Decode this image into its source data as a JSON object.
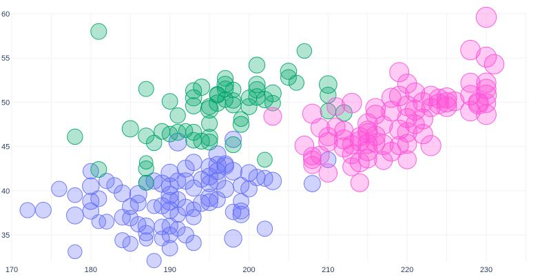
{
  "chart_data": {
    "type": "scatter",
    "variant": "bubble",
    "title": "",
    "xlabel": "",
    "ylabel": "",
    "xlim": [
      170,
      235
    ],
    "ylim": [
      32,
      60
    ],
    "xticks": [
      "170",
      "180",
      "190",
      "200",
      "210",
      "220",
      "230"
    ],
    "yticks": [
      "35",
      "40",
      "45",
      "50",
      "55",
      "60"
    ],
    "grid": true,
    "legend": "none",
    "size_range": [
      2700,
      6300
    ],
    "series": [
      {
        "color": "#636efa",
        "points": [
          [
            172,
            37.8,
            3400
          ],
          [
            174,
            37.8,
            3700
          ],
          [
            176,
            40.2,
            3500
          ],
          [
            178,
            39.5,
            3300
          ],
          [
            178,
            37.2,
            4300
          ],
          [
            178,
            33.1,
            2900
          ],
          [
            180,
            42.2,
            3600
          ],
          [
            180,
            40.5,
            4200
          ],
          [
            180,
            38.8,
            4000
          ],
          [
            180,
            37.7,
            3900
          ],
          [
            181,
            39.1,
            3700
          ],
          [
            181,
            36.5,
            2900
          ],
          [
            182,
            41.1,
            3500
          ],
          [
            182,
            36.5,
            3300
          ],
          [
            183,
            40.6,
            3600
          ],
          [
            184,
            39.7,
            4100
          ],
          [
            184,
            37.0,
            3700
          ],
          [
            184,
            34.4,
            3400
          ],
          [
            185,
            38.2,
            3800
          ],
          [
            185,
            36.9,
            3600
          ],
          [
            185,
            34.0,
            3400
          ],
          [
            186,
            39.6,
            4400
          ],
          [
            186,
            38.6,
            3700
          ],
          [
            186,
            36.2,
            3500
          ],
          [
            187,
            40.9,
            3400
          ],
          [
            187,
            36.0,
            4000
          ],
          [
            187,
            35.2,
            3600
          ],
          [
            187,
            34.5,
            2700
          ],
          [
            188,
            41.1,
            3900
          ],
          [
            188,
            38.2,
            2900
          ],
          [
            188,
            32.1,
            3100
          ],
          [
            189,
            40.8,
            4400
          ],
          [
            189,
            38.3,
            3900
          ],
          [
            189,
            35.9,
            3700
          ],
          [
            189,
            34.6,
            3300
          ],
          [
            190,
            42.0,
            4600
          ],
          [
            190,
            40.5,
            4200
          ],
          [
            190,
            39.5,
            4500
          ],
          [
            190,
            38.8,
            4700
          ],
          [
            190,
            37.8,
            4300
          ],
          [
            190,
            36.0,
            3800
          ],
          [
            190,
            35.0,
            3600
          ],
          [
            190,
            33.5,
            3600
          ],
          [
            191,
            41.1,
            3800
          ],
          [
            191,
            39.0,
            3700
          ],
          [
            191,
            37.3,
            3600
          ],
          [
            191,
            35.7,
            3200
          ],
          [
            192,
            42.5,
            4300
          ],
          [
            192,
            41.1,
            4000
          ],
          [
            192,
            38.1,
            4100
          ],
          [
            192,
            35.0,
            3900
          ],
          [
            193,
            43.2,
            4000
          ],
          [
            193,
            40.3,
            3900
          ],
          [
            193,
            37.9,
            3200
          ],
          [
            193,
            37.0,
            3400
          ],
          [
            193,
            34.1,
            3500
          ],
          [
            194,
            41.3,
            3800
          ],
          [
            194,
            38.6,
            4000
          ],
          [
            195,
            42.7,
            4200
          ],
          [
            195,
            41.6,
            4300
          ],
          [
            195,
            40.8,
            4000
          ],
          [
            195,
            39.2,
            4500
          ],
          [
            195,
            38.7,
            4200
          ],
          [
            196,
            44.1,
            4400
          ],
          [
            196,
            42.9,
            4400
          ],
          [
            196,
            42.2,
            4200
          ],
          [
            196,
            41.1,
            4300
          ],
          [
            196,
            39.0,
            3800
          ],
          [
            197,
            42.8,
            4200
          ],
          [
            197,
            40.2,
            4400
          ],
          [
            197,
            43.0,
            4100
          ],
          [
            198,
            42.2,
            4600
          ],
          [
            198,
            37.6,
            3600
          ],
          [
            198,
            34.6,
            4500
          ],
          [
            199,
            40.6,
            3800
          ],
          [
            199,
            38.8,
            3600
          ],
          [
            199,
            37.3,
            4000
          ],
          [
            199,
            37.7,
            3800
          ],
          [
            200,
            42.0,
            4200
          ],
          [
            200,
            40.2,
            3900
          ],
          [
            201,
            41.5,
            4000
          ],
          [
            202,
            41.4,
            3800
          ],
          [
            202,
            35.7,
            3500
          ],
          [
            203,
            41.1,
            4500
          ],
          [
            208,
            40.8,
            4000
          ],
          [
            210,
            43.5,
            3700
          ],
          [
            191,
            45.5,
            4700
          ],
          [
            198,
            45.8,
            4000
          ]
        ]
      },
      {
        "color": "#00a46b",
        "points": [
          [
            181,
            58.0,
            3700
          ],
          [
            178,
            46.1,
            3500
          ],
          [
            181,
            42.4,
            3700
          ],
          [
            185,
            47.0,
            4000
          ],
          [
            187,
            51.5,
            3400
          ],
          [
            187,
            46.2,
            3700
          ],
          [
            187,
            42.5,
            3500
          ],
          [
            187,
            43.2,
            2700
          ],
          [
            187,
            40.9,
            3300
          ],
          [
            188,
            45.4,
            3500
          ],
          [
            189,
            46.7,
            3700
          ],
          [
            190,
            50.1,
            3600
          ],
          [
            190,
            46.4,
            3600
          ],
          [
            191,
            48.5,
            3500
          ],
          [
            191,
            46.6,
            3800
          ],
          [
            192,
            46.8,
            2900
          ],
          [
            193,
            50.5,
            3900
          ],
          [
            193,
            51.3,
            3800
          ],
          [
            193,
            49.6,
            3900
          ],
          [
            193,
            46.6,
            3800
          ],
          [
            193,
            45.7,
            3600
          ],
          [
            194,
            51.7,
            4000
          ],
          [
            194,
            45.6,
            3800
          ],
          [
            195,
            49.2,
            4600
          ],
          [
            195,
            49.5,
            3800
          ],
          [
            195,
            47.6,
            3700
          ],
          [
            195,
            46.0,
            4100
          ],
          [
            195,
            45.5,
            3800
          ],
          [
            196,
            50.9,
            3600
          ],
          [
            196,
            50.8,
            3700
          ],
          [
            196,
            49.9,
            4000
          ],
          [
            197,
            52.7,
            3700
          ],
          [
            197,
            52.0,
            4100
          ],
          [
            197,
            51.5,
            3800
          ],
          [
            197,
            50.3,
            3600
          ],
          [
            198,
            51.4,
            3600
          ],
          [
            198,
            50.2,
            3600
          ],
          [
            198,
            49.7,
            3800
          ],
          [
            198,
            45.2,
            3800
          ],
          [
            199,
            48.1,
            3300
          ],
          [
            199,
            47.5,
            3800
          ],
          [
            200,
            50.5,
            3500
          ],
          [
            200,
            49.5,
            3800
          ],
          [
            201,
            54.2,
            3800
          ],
          [
            201,
            52.0,
            4100
          ],
          [
            201,
            51.4,
            4100
          ],
          [
            201,
            50.6,
            4100
          ],
          [
            202,
            50.3,
            4000
          ],
          [
            202,
            43.5,
            3300
          ],
          [
            203,
            51.0,
            4300
          ],
          [
            203,
            49.9,
            3600
          ],
          [
            205,
            53.5,
            3900
          ],
          [
            205,
            52.8,
            3700
          ],
          [
            206,
            52.2,
            3400
          ],
          [
            207,
            55.8,
            3200
          ],
          [
            210,
            52.0,
            4600
          ],
          [
            210,
            50.8,
            3800
          ],
          [
            210,
            49.0,
            3600
          ],
          [
            212,
            48.8,
            4000
          ]
        ]
      },
      {
        "color": "#ff4fd8",
        "points": [
          [
            203,
            48.4,
            4700
          ],
          [
            207,
            45.1,
            5300
          ],
          [
            208,
            48.7,
            5500
          ],
          [
            208,
            43.5,
            4600
          ],
          [
            208,
            42.9,
            4400
          ],
          [
            208,
            43.9,
            4600
          ],
          [
            209,
            47.1,
            5100
          ],
          [
            209,
            44.0,
            5000
          ],
          [
            210,
            45.5,
            5200
          ],
          [
            210,
            42.0,
            4900
          ],
          [
            210,
            46.1,
            5000
          ],
          [
            211,
            47.2,
            4900
          ],
          [
            211,
            49.5,
            4800
          ],
          [
            212,
            46.8,
            5000
          ],
          [
            212,
            45.8,
            5400
          ],
          [
            212,
            44.9,
            5500
          ],
          [
            213,
            49.9,
            5700
          ],
          [
            213,
            44.1,
            5200
          ],
          [
            213,
            45.2,
            5000
          ],
          [
            213,
            42.7,
            4800
          ],
          [
            214,
            46.1,
            5000
          ],
          [
            214,
            43.2,
            5400
          ],
          [
            214,
            40.9,
            4800
          ],
          [
            214,
            45.6,
            5500
          ],
          [
            215,
            47.6,
            5600
          ],
          [
            215,
            46.5,
            5500
          ],
          [
            215,
            45.3,
            5400
          ],
          [
            215,
            44.5,
            5700
          ],
          [
            215,
            46.8,
            5300
          ],
          [
            215,
            43.6,
            5000
          ],
          [
            216,
            49.3,
            5800
          ],
          [
            216,
            48.6,
            5300
          ],
          [
            216,
            46.2,
            5500
          ],
          [
            216,
            45.4,
            5200
          ],
          [
            217,
            47.4,
            4900
          ],
          [
            217,
            43.4,
            4700
          ],
          [
            217,
            45.2,
            5800
          ],
          [
            218,
            49.0,
            5800
          ],
          [
            218,
            44.4,
            5300
          ],
          [
            218,
            50.5,
            5500
          ],
          [
            219,
            53.4,
            5500
          ],
          [
            219,
            50.7,
            5700
          ],
          [
            219,
            46.9,
            5500
          ],
          [
            219,
            45.1,
            5000
          ],
          [
            220,
            52.1,
            5400
          ],
          [
            220,
            48.2,
            5400
          ],
          [
            220,
            46.6,
            5600
          ],
          [
            220,
            49.6,
            5750
          ],
          [
            220,
            45.3,
            5300
          ],
          [
            220,
            43.5,
            4900
          ],
          [
            221,
            51.1,
            5500
          ],
          [
            221,
            49.1,
            5950
          ],
          [
            221,
            47.5,
            5200
          ],
          [
            222,
            50.0,
            5600
          ],
          [
            222,
            48.1,
            5800
          ],
          [
            222,
            46.4,
            5600
          ],
          [
            223,
            50.7,
            5700
          ],
          [
            223,
            49.4,
            5000
          ],
          [
            223,
            45.1,
            6000
          ],
          [
            224,
            50.4,
            5400
          ],
          [
            224,
            49.8,
            5700
          ],
          [
            225,
            50.5,
            5900
          ],
          [
            225,
            49.5,
            5800
          ],
          [
            225,
            50.0,
            5600
          ],
          [
            226,
            50.1,
            5300
          ],
          [
            228,
            55.9,
            5700
          ],
          [
            228,
            52.2,
            5500
          ],
          [
            228,
            50.8,
            5700
          ],
          [
            228,
            49.0,
            5800
          ],
          [
            229,
            49.8,
            5950
          ],
          [
            229,
            50.0,
            5800
          ],
          [
            230,
            59.6,
            6050
          ],
          [
            230,
            55.1,
            6000
          ],
          [
            230,
            52.2,
            5600
          ],
          [
            230,
            51.5,
            5600
          ],
          [
            230,
            50.8,
            6000
          ],
          [
            230,
            48.6,
            5800
          ],
          [
            230,
            49.9,
            5300
          ],
          [
            231,
            54.3,
            5650
          ]
        ]
      }
    ]
  }
}
